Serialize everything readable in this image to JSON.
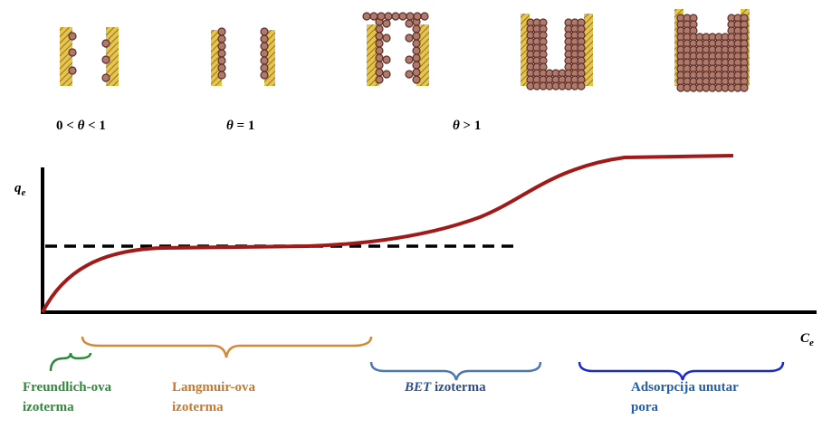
{
  "coverage": [
    {
      "pre": "0 <",
      "symbol": "θ",
      "post": "< 1"
    },
    {
      "pre": "",
      "symbol": "θ",
      "post": "= 1"
    },
    {
      "pre": "",
      "symbol": "θ",
      "post": "> 1"
    }
  ],
  "axes": {
    "y": {
      "symbol": "q",
      "subscript": "e"
    },
    "x": {
      "symbol": "C",
      "subscript": "e"
    }
  },
  "regions": [
    {
      "lines": [
        "Freundlich-ova",
        "izoterma"
      ]
    },
    {
      "lines": [
        "Langmuir-ova",
        "izoterma"
      ]
    },
    {
      "italic": "BET",
      "lines": [
        "izoterma"
      ]
    },
    {
      "lines": [
        "Adsorpcija unutar",
        "pora"
      ]
    }
  ]
}
